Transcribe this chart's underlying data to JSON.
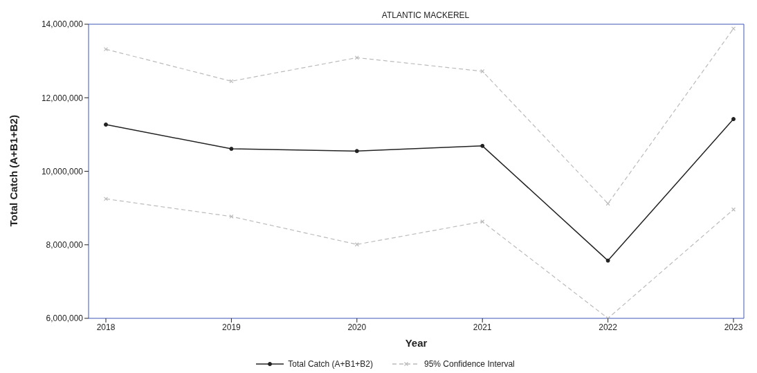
{
  "chart_data": {
    "type": "line",
    "title": "ATLANTIC MACKEREL",
    "xlabel": "Year",
    "ylabel": "Total Catch (A+B1+B2)",
    "categories": [
      "2018",
      "2019",
      "2020",
      "2021",
      "2022",
      "2023"
    ],
    "series": [
      {
        "name": "Total Catch (A+B1+B2)",
        "color": "#222222",
        "marker": "circle",
        "line_style": "solid",
        "values": [
          11270000,
          10610000,
          10550000,
          10690000,
          7570000,
          11420000
        ]
      },
      {
        "name": "95% Confidence Interval",
        "color": "#bbbbbb",
        "marker": "cross",
        "line_style": "dashed",
        "values": [
          13320000,
          12450000,
          13090000,
          12720000,
          9120000,
          13880000
        ]
      },
      {
        "color": "#bbbbbb",
        "marker": "cross",
        "line_style": "dashed",
        "values": [
          9250000,
          8770000,
          8010000,
          8630000,
          6000000,
          8960000
        ]
      }
    ],
    "ylim": [
      6000000,
      14000000
    ],
    "yticks": [
      {
        "value": 6000000,
        "label": "6,000,000"
      },
      {
        "value": 8000000,
        "label": "8,000,000"
      },
      {
        "value": 10000000,
        "label": "10,000,000"
      },
      {
        "value": 12000000,
        "label": "12,000,000"
      },
      {
        "value": 14000000,
        "label": "14,000,000"
      }
    ],
    "grid": false,
    "legend": "bottom"
  }
}
